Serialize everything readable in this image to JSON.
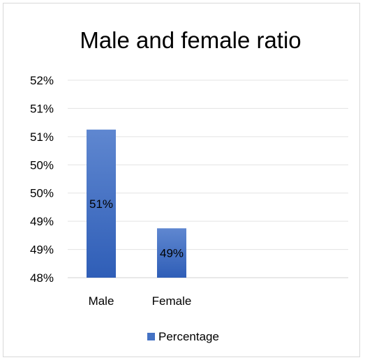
{
  "chart_data": {
    "type": "bar",
    "title": "Male and female ratio",
    "xlabel": "",
    "ylabel": "",
    "categories": [
      "Male",
      "Female"
    ],
    "series": [
      {
        "name": "Percentage",
        "values": [
          0.51,
          0.49
        ],
        "data_labels": [
          "51%",
          "49%"
        ],
        "color": "#4472c4"
      }
    ],
    "y_ticks": [
      "52%",
      "51%",
      "51%",
      "50%",
      "50%",
      "49%",
      "49%",
      "48%"
    ],
    "ylim": [
      0.48,
      0.52
    ],
    "grid": true,
    "legend_position": "bottom"
  }
}
